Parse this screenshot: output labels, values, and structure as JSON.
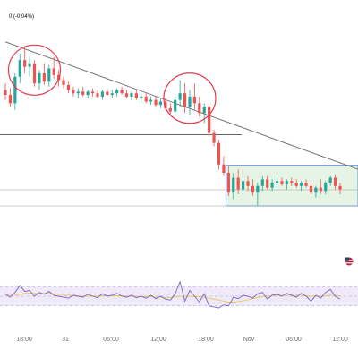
{
  "header": {
    "change_text": "0 (-0.04%)"
  },
  "colors": {
    "up": "#26a69a",
    "down": "#ef5350",
    "trendline": "#6b6b6b",
    "support": "#505050",
    "range_fill": "#e6f4e6",
    "range_border": "#3b82f6",
    "circle": "#e53950",
    "rsi_line": "#7b61c9",
    "rsi_ma": "#e8c85a",
    "rsi_band": "#efeaf9"
  },
  "icons": {
    "flag": "us-flag-icon"
  },
  "chart_data": {
    "type": "candlestick",
    "x_ticks": [
      "18:00",
      "31",
      "06:00",
      "12:00",
      "18:00",
      "Nov",
      "06:00",
      "12:00"
    ],
    "candles": [
      [
        0.7,
        0.74,
        0.64,
        0.67
      ],
      [
        0.67,
        0.71,
        0.6,
        0.62
      ],
      [
        0.62,
        0.8,
        0.58,
        0.78
      ],
      [
        0.78,
        0.92,
        0.74,
        0.88
      ],
      [
        0.88,
        0.96,
        0.8,
        0.84
      ],
      [
        0.84,
        0.9,
        0.78,
        0.86
      ],
      [
        0.86,
        0.88,
        0.72,
        0.74
      ],
      [
        0.74,
        0.82,
        0.7,
        0.8
      ],
      [
        0.8,
        0.86,
        0.73,
        0.75
      ],
      [
        0.75,
        0.85,
        0.72,
        0.83
      ],
      [
        0.83,
        0.9,
        0.77,
        0.79
      ],
      [
        0.79,
        0.82,
        0.72,
        0.76
      ],
      [
        0.76,
        0.78,
        0.71,
        0.73
      ],
      [
        0.73,
        0.75,
        0.68,
        0.7
      ],
      [
        0.7,
        0.72,
        0.66,
        0.68
      ],
      [
        0.68,
        0.71,
        0.65,
        0.69
      ],
      [
        0.69,
        0.72,
        0.66,
        0.67
      ],
      [
        0.67,
        0.7,
        0.65,
        0.69
      ],
      [
        0.69,
        0.71,
        0.66,
        0.68
      ],
      [
        0.68,
        0.7,
        0.65,
        0.66
      ],
      [
        0.66,
        0.7,
        0.64,
        0.69
      ],
      [
        0.69,
        0.71,
        0.66,
        0.67
      ],
      [
        0.67,
        0.7,
        0.65,
        0.68
      ],
      [
        0.68,
        0.71,
        0.66,
        0.7
      ],
      [
        0.7,
        0.72,
        0.67,
        0.68
      ],
      [
        0.68,
        0.7,
        0.65,
        0.66
      ],
      [
        0.66,
        0.69,
        0.64,
        0.68
      ],
      [
        0.68,
        0.7,
        0.64,
        0.65
      ],
      [
        0.65,
        0.68,
        0.62,
        0.66
      ],
      [
        0.66,
        0.68,
        0.62,
        0.63
      ],
      [
        0.63,
        0.66,
        0.61,
        0.64
      ],
      [
        0.64,
        0.66,
        0.6,
        0.61
      ],
      [
        0.61,
        0.65,
        0.59,
        0.63
      ],
      [
        0.63,
        0.65,
        0.58,
        0.59
      ],
      [
        0.59,
        0.62,
        0.55,
        0.57
      ],
      [
        0.57,
        0.66,
        0.55,
        0.64
      ],
      [
        0.64,
        0.76,
        0.6,
        0.68
      ],
      [
        0.68,
        0.74,
        0.56,
        0.6
      ],
      [
        0.6,
        0.7,
        0.55,
        0.66
      ],
      [
        0.66,
        0.74,
        0.58,
        0.62
      ],
      [
        0.62,
        0.66,
        0.54,
        0.56
      ],
      [
        0.56,
        0.62,
        0.5,
        0.6
      ],
      [
        0.6,
        0.62,
        0.42,
        0.44
      ],
      [
        0.44,
        0.46,
        0.36,
        0.38
      ],
      [
        0.38,
        0.4,
        0.22,
        0.25
      ],
      [
        0.25,
        0.3,
        0.18,
        0.2
      ],
      [
        0.2,
        0.24,
        0.06,
        0.08
      ],
      [
        0.08,
        0.2,
        0.04,
        0.17
      ],
      [
        0.17,
        0.22,
        0.07,
        0.1
      ],
      [
        0.1,
        0.18,
        0.07,
        0.15
      ],
      [
        0.15,
        0.18,
        0.09,
        0.12
      ],
      [
        0.12,
        0.16,
        0.06,
        0.08
      ],
      [
        0.08,
        0.14,
        0.0,
        0.12
      ],
      [
        0.12,
        0.18,
        0.09,
        0.16
      ],
      [
        0.16,
        0.18,
        0.1,
        0.11
      ],
      [
        0.11,
        0.16,
        0.09,
        0.14
      ],
      [
        0.14,
        0.17,
        0.11,
        0.15
      ],
      [
        0.15,
        0.17,
        0.12,
        0.13
      ],
      [
        0.13,
        0.16,
        0.1,
        0.15
      ],
      [
        0.15,
        0.17,
        0.12,
        0.14
      ],
      [
        0.14,
        0.16,
        0.11,
        0.12
      ],
      [
        0.12,
        0.15,
        0.09,
        0.14
      ],
      [
        0.14,
        0.16,
        0.11,
        0.12
      ],
      [
        0.12,
        0.14,
        0.07,
        0.08
      ],
      [
        0.08,
        0.12,
        0.05,
        0.11
      ],
      [
        0.11,
        0.16,
        0.07,
        0.09
      ],
      [
        0.09,
        0.15,
        0.07,
        0.14
      ],
      [
        0.14,
        0.18,
        0.12,
        0.17
      ],
      [
        0.17,
        0.19,
        0.1,
        0.12
      ],
      [
        0.12,
        0.14,
        0.07,
        0.1
      ]
    ],
    "support_level": 0.43,
    "range_box": {
      "from_index": 46,
      "to_index": 69,
      "top": 0.245,
      "bottom": 0.0
    },
    "trendline": {
      "from": [
        0,
        0.99
      ],
      "to": [
        69,
        0.26
      ]
    },
    "highlight_circles": [
      {
        "center_index": 6,
        "level": 0.82
      },
      {
        "center_index": 38,
        "level": 0.65
      }
    ],
    "rsi": {
      "values": [
        55,
        48,
        58,
        72,
        60,
        62,
        50,
        58,
        54,
        60,
        52,
        50,
        48,
        46,
        52,
        50,
        48,
        54,
        50,
        47,
        55,
        50,
        52,
        56,
        50,
        48,
        52,
        47,
        50,
        46,
        52,
        45,
        50,
        44,
        42,
        55,
        80,
        40,
        62,
        50,
        38,
        55,
        30,
        28,
        26,
        32,
        30,
        48,
        45,
        52,
        50,
        46,
        55,
        58,
        44,
        52,
        54,
        50,
        56,
        52,
        48,
        56,
        50,
        40,
        52,
        46,
        58,
        64,
        50,
        44
      ],
      "ma": [
        52,
        52,
        52,
        54,
        56,
        57,
        56,
        56,
        56,
        56,
        55,
        54,
        53,
        52,
        51,
        50,
        50,
        50,
        50,
        50,
        51,
        51,
        51,
        51,
        51,
        50,
        50,
        50,
        49,
        49,
        49,
        48,
        48,
        47,
        47,
        48,
        50,
        50,
        50,
        49,
        49,
        48,
        46,
        44,
        42,
        40,
        38,
        38,
        39,
        41,
        43,
        45,
        47,
        49,
        50,
        51,
        52,
        52,
        52,
        52,
        52,
        52,
        51,
        50,
        50,
        50,
        51,
        52,
        52,
        51
      ],
      "upper": 70,
      "lower": 30
    }
  }
}
